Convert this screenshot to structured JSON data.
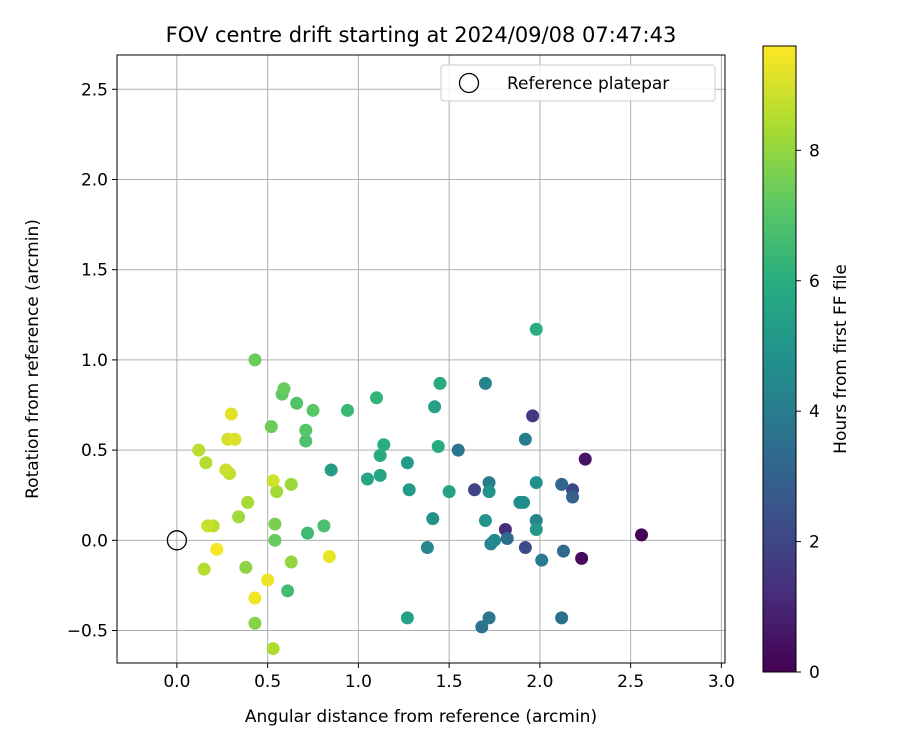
{
  "chart_data": {
    "type": "scatter",
    "title": "FOV centre drift starting at 2024/09/08 07:47:43",
    "xlabel": "Angular distance from reference (arcmin)",
    "ylabel": "Rotation from reference (arcmin)",
    "xlim": [
      -0.33,
      3.02
    ],
    "ylim": [
      -0.68,
      2.69
    ],
    "xticks": [
      "0.0",
      "0.5",
      "1.0",
      "1.5",
      "2.0",
      "2.5",
      "3.0"
    ],
    "yticks": [
      "−0.5",
      "0.0",
      "0.5",
      "1.0",
      "1.5",
      "2.0",
      "2.5"
    ],
    "grid": true,
    "legend": {
      "position": "top-right",
      "entries": [
        "Reference platepar"
      ]
    },
    "reference_point": {
      "x": 0.0,
      "y": 0.0
    },
    "colorbar": {
      "label": "Hours from first FF file",
      "range": [
        0,
        9.6
      ],
      "ticks": [
        "0",
        "2",
        "4",
        "6",
        "8"
      ],
      "colormap": "viridis"
    },
    "points": [
      {
        "x": 2.56,
        "y": 0.03,
        "c": 0.1
      },
      {
        "x": 2.23,
        "y": -0.1,
        "c": 0.3
      },
      {
        "x": 2.25,
        "y": 0.45,
        "c": 0.5
      },
      {
        "x": 1.81,
        "y": 0.06,
        "c": 1.2
      },
      {
        "x": 1.96,
        "y": 0.69,
        "c": 1.6
      },
      {
        "x": 1.64,
        "y": 0.28,
        "c": 1.9
      },
      {
        "x": 2.18,
        "y": 0.28,
        "c": 2.0
      },
      {
        "x": 1.92,
        "y": -0.04,
        "c": 2.2
      },
      {
        "x": 2.18,
        "y": 0.24,
        "c": 3.0
      },
      {
        "x": 2.12,
        "y": 0.31,
        "c": 3.2
      },
      {
        "x": 2.13,
        "y": -0.06,
        "c": 3.3
      },
      {
        "x": 1.82,
        "y": 0.01,
        "c": 3.4
      },
      {
        "x": 2.12,
        "y": -0.43,
        "c": 3.5
      },
      {
        "x": 1.68,
        "y": -0.48,
        "c": 3.6
      },
      {
        "x": 1.72,
        "y": -0.43,
        "c": 3.7
      },
      {
        "x": 1.55,
        "y": 0.5,
        "c": 3.8
      },
      {
        "x": 2.01,
        "y": -0.11,
        "c": 3.9
      },
      {
        "x": 1.72,
        "y": 0.32,
        "c": 4.0
      },
      {
        "x": 1.92,
        "y": 0.56,
        "c": 4.1
      },
      {
        "x": 1.73,
        "y": -0.02,
        "c": 4.2
      },
      {
        "x": 1.98,
        "y": 0.11,
        "c": 4.3
      },
      {
        "x": 1.7,
        "y": 0.87,
        "c": 4.3
      },
      {
        "x": 1.38,
        "y": -0.04,
        "c": 4.4
      },
      {
        "x": 1.75,
        "y": 0.0,
        "c": 4.5
      },
      {
        "x": 1.89,
        "y": 0.21,
        "c": 4.6
      },
      {
        "x": 1.91,
        "y": 0.21,
        "c": 4.7
      },
      {
        "x": 1.98,
        "y": 0.32,
        "c": 4.8
      },
      {
        "x": 1.41,
        "y": 0.12,
        "c": 4.9
      },
      {
        "x": 1.72,
        "y": 0.27,
        "c": 4.9
      },
      {
        "x": 1.7,
        "y": 0.11,
        "c": 5.0
      },
      {
        "x": 1.98,
        "y": 0.06,
        "c": 5.1
      },
      {
        "x": 1.27,
        "y": 0.43,
        "c": 5.2
      },
      {
        "x": 1.28,
        "y": 0.28,
        "c": 5.2
      },
      {
        "x": 0.85,
        "y": 0.39,
        "c": 5.3
      },
      {
        "x": 1.42,
        "y": 0.74,
        "c": 5.4
      },
      {
        "x": 1.5,
        "y": 0.27,
        "c": 5.5
      },
      {
        "x": 1.27,
        "y": -0.43,
        "c": 5.5
      },
      {
        "x": 1.05,
        "y": 0.34,
        "c": 5.6
      },
      {
        "x": 1.12,
        "y": 0.36,
        "c": 5.7
      },
      {
        "x": 1.12,
        "y": 0.47,
        "c": 5.8
      },
      {
        "x": 1.45,
        "y": 0.87,
        "c": 5.8
      },
      {
        "x": 1.44,
        "y": 0.52,
        "c": 5.9
      },
      {
        "x": 1.14,
        "y": 0.53,
        "c": 6.0
      },
      {
        "x": 1.98,
        "y": 1.17,
        "c": 6.0
      },
      {
        "x": 1.1,
        "y": 0.79,
        "c": 6.2
      },
      {
        "x": 0.94,
        "y": 0.72,
        "c": 6.4
      },
      {
        "x": 0.72,
        "y": 0.04,
        "c": 6.5
      },
      {
        "x": 0.61,
        "y": -0.28,
        "c": 6.6
      },
      {
        "x": 0.81,
        "y": 0.08,
        "c": 6.8
      },
      {
        "x": 0.71,
        "y": 0.55,
        "c": 6.8
      },
      {
        "x": 0.66,
        "y": 0.76,
        "c": 6.9
      },
      {
        "x": 0.71,
        "y": 0.61,
        "c": 7.0
      },
      {
        "x": 0.75,
        "y": 0.72,
        "c": 7.1
      },
      {
        "x": 0.58,
        "y": 0.81,
        "c": 7.2
      },
      {
        "x": 0.59,
        "y": 0.84,
        "c": 7.3
      },
      {
        "x": 0.54,
        "y": 0.0,
        "c": 7.3
      },
      {
        "x": 0.52,
        "y": 0.63,
        "c": 7.4
      },
      {
        "x": 0.43,
        "y": 1.0,
        "c": 7.4
      },
      {
        "x": 0.54,
        "y": 0.09,
        "c": 7.6
      },
      {
        "x": 0.43,
        "y": -0.46,
        "c": 7.8
      },
      {
        "x": 0.38,
        "y": -0.15,
        "c": 7.9
      },
      {
        "x": 0.63,
        "y": -0.12,
        "c": 8.0
      },
      {
        "x": 0.63,
        "y": 0.31,
        "c": 8.1
      },
      {
        "x": 0.55,
        "y": 0.27,
        "c": 8.2
      },
      {
        "x": 0.34,
        "y": 0.13,
        "c": 8.2
      },
      {
        "x": 0.39,
        "y": 0.21,
        "c": 8.3
      },
      {
        "x": 0.53,
        "y": -0.6,
        "c": 8.4
      },
      {
        "x": 0.15,
        "y": -0.16,
        "c": 8.5
      },
      {
        "x": 0.16,
        "y": 0.43,
        "c": 8.5
      },
      {
        "x": 0.12,
        "y": 0.5,
        "c": 8.6
      },
      {
        "x": 0.2,
        "y": 0.08,
        "c": 8.6
      },
      {
        "x": 0.29,
        "y": 0.37,
        "c": 8.7
      },
      {
        "x": 0.27,
        "y": 0.39,
        "c": 8.8
      },
      {
        "x": 0.17,
        "y": 0.08,
        "c": 8.8
      },
      {
        "x": 0.53,
        "y": 0.33,
        "c": 8.9
      },
      {
        "x": 0.28,
        "y": 0.56,
        "c": 9.0
      },
      {
        "x": 0.32,
        "y": 0.56,
        "c": 9.1
      },
      {
        "x": 0.3,
        "y": 0.7,
        "c": 9.2
      },
      {
        "x": 0.84,
        "y": -0.09,
        "c": 9.3
      },
      {
        "x": 0.5,
        "y": -0.22,
        "c": 9.3
      },
      {
        "x": 0.43,
        "y": -0.32,
        "c": 9.4
      },
      {
        "x": 0.22,
        "y": -0.05,
        "c": 9.5
      }
    ]
  }
}
